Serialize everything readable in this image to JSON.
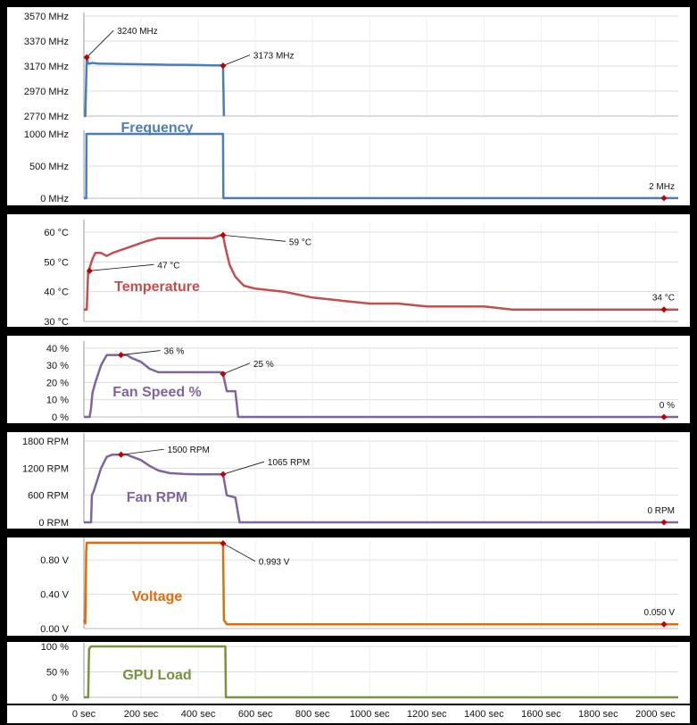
{
  "chart_data": {
    "type": "line",
    "x_ticks": [
      "0 sec",
      "200 sec",
      "400 sec",
      "600 sec",
      "800 sec",
      "1000 sec",
      "1200 sec",
      "1400 sec",
      "1600 sec",
      "1800 sec",
      "2000 sec"
    ],
    "x_range": [
      0,
      2080
    ],
    "grid": true,
    "panels": [
      {
        "id": "freq-top",
        "title": "",
        "color": "#4a7ebb",
        "yrange": [
          2770,
          3570
        ],
        "ticks": [
          "3570 MHz",
          "3370 MHz",
          "3170 MHz",
          "2970 MHz",
          "2770 MHz"
        ],
        "tick_values": [
          3570,
          3370,
          3170,
          2970,
          2770
        ],
        "x": [
          0,
          5,
          10,
          15,
          20,
          30,
          50,
          100,
          150,
          200,
          250,
          300,
          350,
          400,
          450,
          480,
          487,
          490
        ],
        "y": [
          2770,
          2770,
          3240,
          3190,
          3190,
          3195,
          3190,
          3188,
          3186,
          3184,
          3182,
          3180,
          3180,
          3178,
          3176,
          3175,
          3173,
          2770
        ],
        "markers": [
          {
            "x": 10,
            "y": 3240,
            "label": "3240 MHz"
          },
          {
            "x": 487,
            "y": 3173,
            "label": "3173 MHz"
          }
        ]
      },
      {
        "id": "freq-bottom",
        "title": "Frequency",
        "color": "#4a7ebb",
        "yrange": [
          0,
          1000
        ],
        "ticks": [
          "1000 MHz",
          "500 MHz",
          "0 MHz"
        ],
        "tick_values": [
          1000,
          500,
          0
        ],
        "x": [
          0,
          5,
          8,
          9,
          487,
          488,
          490,
          2080
        ],
        "y": [
          0,
          0,
          0,
          1000,
          1000,
          0,
          2,
          2
        ],
        "markers": [
          {
            "x": 2030,
            "y": 2,
            "label": "2 MHz"
          }
        ]
      },
      {
        "id": "temp",
        "title": "Temperature",
        "color": "#c0504d",
        "yrange": [
          30,
          63
        ],
        "ticks": [
          "60 °C",
          "50 °C",
          "40 °C",
          "30 °C"
        ],
        "tick_values": [
          60,
          50,
          40,
          30
        ],
        "x": [
          0,
          10,
          15,
          20,
          30,
          40,
          60,
          80,
          100,
          130,
          160,
          190,
          220,
          260,
          300,
          350,
          400,
          450,
          480,
          487,
          495,
          510,
          530,
          560,
          600,
          700,
          800,
          900,
          1000,
          1100,
          1200,
          1300,
          1400,
          1500,
          1600,
          1700,
          1800,
          1900,
          2000,
          2080
        ],
        "y": [
          34,
          34,
          47,
          48,
          51,
          53,
          53,
          52,
          53,
          54,
          55,
          56,
          57,
          58,
          58,
          58,
          58,
          58,
          59,
          59,
          55,
          49,
          45,
          42,
          41,
          40,
          38,
          37,
          36,
          36,
          35,
          35,
          35,
          34,
          34,
          34,
          34,
          34,
          34,
          34
        ],
        "markers": [
          {
            "x": 20,
            "y": 47,
            "label": "47 °C"
          },
          {
            "x": 487,
            "y": 59,
            "label": "59 °C"
          },
          {
            "x": 2030,
            "y": 34,
            "label": "34 °C"
          }
        ]
      },
      {
        "id": "fan",
        "title": "Fan Speed %",
        "color": "#8064a2",
        "yrange": [
          0,
          42
        ],
        "ticks": [
          "40 %",
          "30 %",
          "20 %",
          "10 %",
          "0 %"
        ],
        "tick_values": [
          40,
          30,
          20,
          10,
          0
        ],
        "x": [
          0,
          20,
          25,
          30,
          40,
          50,
          60,
          80,
          100,
          130,
          150,
          170,
          200,
          230,
          260,
          300,
          350,
          400,
          450,
          480,
          487,
          500,
          530,
          540,
          545,
          2080
        ],
        "y": [
          0,
          0,
          5,
          14,
          20,
          25,
          30,
          36,
          36,
          36,
          36,
          34,
          32,
          28,
          26,
          26,
          26,
          26,
          26,
          26,
          25,
          15,
          15,
          0,
          0,
          0
        ],
        "markers": [
          {
            "x": 130,
            "y": 36,
            "label": "36 %"
          },
          {
            "x": 487,
            "y": 25,
            "label": "25 %"
          },
          {
            "x": 2030,
            "y": 0,
            "label": "0 %"
          }
        ]
      },
      {
        "id": "rpm",
        "title": "Fan RPM",
        "color": "#8064a2",
        "yrange": [
          0,
          1900
        ],
        "ticks": [
          "1800 RPM",
          "1200 RPM",
          "600 RPM",
          "0 RPM"
        ],
        "tick_values": [
          1800,
          1200,
          600,
          0
        ],
        "x": [
          0,
          25,
          28,
          35,
          45,
          60,
          80,
          100,
          130,
          150,
          170,
          200,
          230,
          260,
          300,
          350,
          400,
          450,
          480,
          487,
          500,
          530,
          545,
          550,
          2080
        ],
        "y": [
          0,
          0,
          600,
          700,
          900,
          1200,
          1450,
          1500,
          1500,
          1500,
          1450,
          1380,
          1250,
          1150,
          1090,
          1070,
          1065,
          1065,
          1065,
          1065,
          600,
          550,
          0,
          0,
          0
        ],
        "markers": [
          {
            "x": 130,
            "y": 1500,
            "label": "1500 RPM"
          },
          {
            "x": 487,
            "y": 1065,
            "label": "1065 RPM"
          },
          {
            "x": 2030,
            "y": 0,
            "label": "0 RPM"
          }
        ]
      },
      {
        "id": "volt",
        "title": "Voltage",
        "color": "#e36c09",
        "yrange": [
          0,
          1.02
        ],
        "ticks": [
          "0.80 V",
          "0.40 V",
          "0.00 V"
        ],
        "tick_values": [
          0.8,
          0.4,
          0
        ],
        "x": [
          0,
          5,
          8,
          10,
          15,
          100,
          200,
          300,
          400,
          480,
          487,
          490,
          500,
          600,
          700,
          800,
          900,
          1000,
          1100,
          1200,
          1300,
          1400,
          1500,
          1600,
          1700,
          1800,
          1900,
          2000,
          2080
        ],
        "y": [
          0.1,
          0.06,
          0.9,
          1.0,
          1.0,
          1.0,
          1.0,
          1.0,
          1.0,
          1.0,
          0.993,
          0.1,
          0.05,
          0.05,
          0.05,
          0.05,
          0.05,
          0.05,
          0.05,
          0.05,
          0.05,
          0.05,
          0.05,
          0.05,
          0.05,
          0.05,
          0.05,
          0.05,
          0.05
        ],
        "markers": [
          {
            "x": 487,
            "y": 0.993,
            "label": "0.993 V"
          },
          {
            "x": 2030,
            "y": 0.05,
            "label": "0.050 V"
          }
        ]
      },
      {
        "id": "load",
        "title": "GPU Load",
        "color": "#77933c",
        "yrange": [
          0,
          100
        ],
        "ticks": [
          "100 %",
          "50 %",
          "0 %"
        ],
        "tick_values": [
          100,
          50,
          0
        ],
        "x": [
          0,
          15,
          18,
          25,
          100,
          200,
          300,
          400,
          480,
          495,
          497,
          2080
        ],
        "y": [
          0,
          0,
          95,
          100,
          100,
          100,
          100,
          100,
          100,
          100,
          0,
          0
        ],
        "markers": []
      }
    ]
  }
}
